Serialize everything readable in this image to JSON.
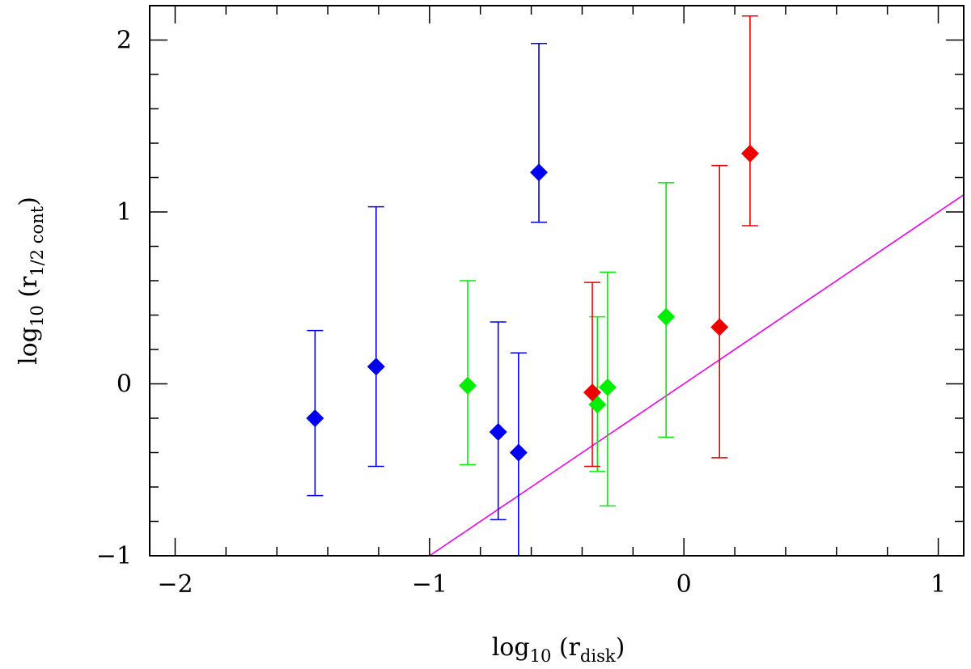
{
  "chart_data": {
    "type": "scatter",
    "title": "",
    "xlabel": {
      "base": "log",
      "sub": "10",
      "mid": " (r",
      "sub2": "disk",
      "end": ")"
    },
    "ylabel": {
      "base": "log",
      "sub": "10",
      "mid": " (r",
      "sub2": "1/2 cont",
      "end": ")"
    },
    "xlim": [
      -2.1,
      1.1
    ],
    "ylim": [
      -1,
      2.2
    ],
    "x_ticks": [
      -2,
      -1,
      0,
      1
    ],
    "x_tick_labels": [
      "−2",
      "−1",
      "0",
      "1"
    ],
    "y_ticks": [
      -1,
      0,
      1,
      2
    ],
    "y_tick_labels": [
      "−1",
      "0",
      "1",
      "2"
    ],
    "x_minor_step": 0.2,
    "y_minor_step": 0.2,
    "grid": false,
    "legend": "none",
    "series": [
      {
        "color": "#0000ee",
        "points": [
          {
            "x": -1.45,
            "y": -0.2,
            "ylow": -0.65,
            "yhigh": 0.31
          },
          {
            "x": -1.21,
            "y": 0.1,
            "ylow": -0.48,
            "yhigh": 1.03
          },
          {
            "x": -0.73,
            "y": -0.28,
            "ylow": -0.79,
            "yhigh": 0.36
          },
          {
            "x": -0.65,
            "y": -0.4,
            "ylow": -1.0,
            "yhigh": 0.18
          },
          {
            "x": -0.57,
            "y": 1.23,
            "ylow": 0.94,
            "yhigh": 1.98
          }
        ]
      },
      {
        "color": "#00ee00",
        "points": [
          {
            "x": -0.85,
            "y": -0.01,
            "ylow": -0.47,
            "yhigh": 0.6
          },
          {
            "x": -0.34,
            "y": -0.12,
            "ylow": -0.51,
            "yhigh": 0.39
          },
          {
            "x": -0.3,
            "y": -0.02,
            "ylow": -0.71,
            "yhigh": 0.65
          },
          {
            "x": -0.07,
            "y": 0.39,
            "ylow": -0.31,
            "yhigh": 1.17
          }
        ]
      },
      {
        "color": "#ee0000",
        "points": [
          {
            "x": -0.36,
            "y": -0.05,
            "ylow": -0.48,
            "yhigh": 0.59
          },
          {
            "x": 0.14,
            "y": 0.33,
            "ylow": -0.43,
            "yhigh": 1.27
          },
          {
            "x": 0.26,
            "y": 1.34,
            "ylow": 0.92,
            "yhigh": 2.14
          }
        ]
      }
    ],
    "lines": [
      {
        "color": "#ee00ee",
        "x": [
          -1.0,
          1.1
        ],
        "y": [
          -1.0,
          1.1
        ]
      }
    ]
  }
}
